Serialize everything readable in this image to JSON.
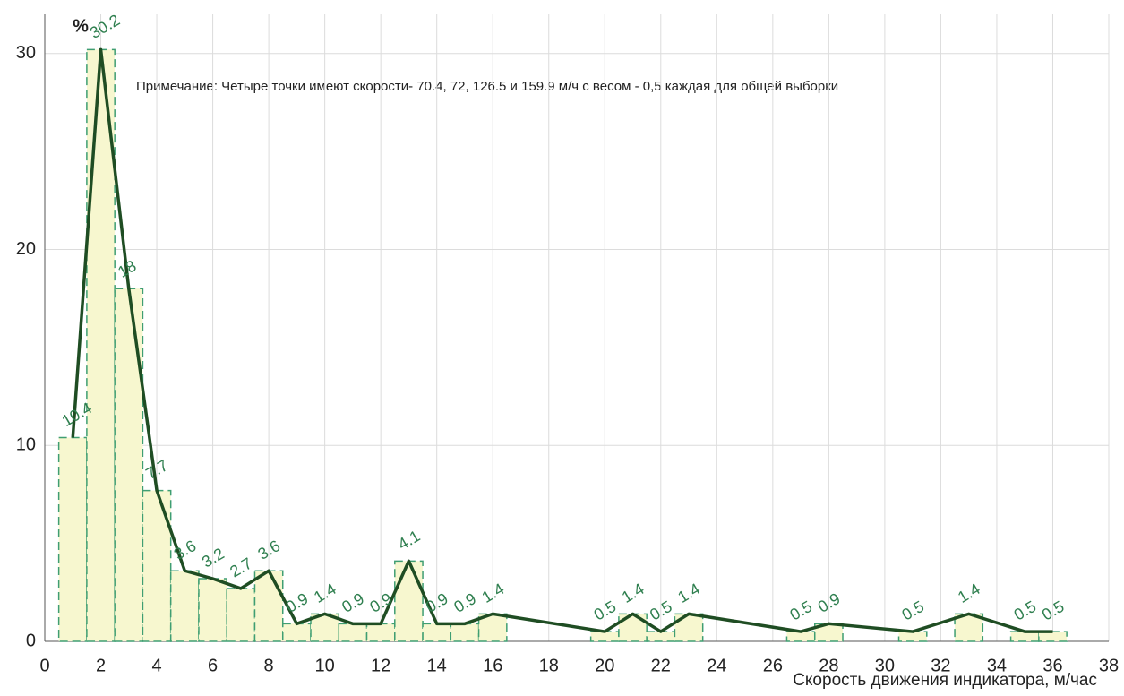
{
  "chart_data": {
    "type": "bar",
    "y_unit_label": "%",
    "note": "Примечание: Четыре точки  имеют скорости- 70.4, 72, 126.5 и 159.9 м/ч с весом - 0,5 каждая для общей выборки",
    "x_label": "Скорость движения индикатора, м/час",
    "x": [
      1,
      2,
      3,
      4,
      5,
      6,
      7,
      8,
      9,
      10,
      11,
      12,
      13,
      14,
      15,
      16,
      20,
      21,
      22,
      23,
      27,
      28,
      31,
      33,
      35,
      36
    ],
    "values": [
      10.4,
      30.2,
      18,
      7.7,
      3.6,
      3.2,
      2.7,
      3.6,
      0.9,
      1.4,
      0.9,
      0.9,
      4.1,
      0.9,
      0.9,
      1.4,
      0.5,
      1.4,
      0.5,
      1.4,
      0.5,
      0.9,
      0.5,
      1.4,
      0.5,
      0.5
    ],
    "color": "#f7f7cf",
    "bar_edge_color": "#3f9e72",
    "line_color": "#1f4d23",
    "label_color": "#2f7f4f",
    "xlim": [
      0,
      38
    ],
    "xticks": [
      0,
      2,
      4,
      6,
      8,
      10,
      12,
      14,
      16,
      18,
      20,
      22,
      24,
      26,
      28,
      30,
      32,
      34,
      36,
      38
    ],
    "ylim": [
      0,
      32
    ],
    "yticks": [
      0,
      10,
      20,
      30
    ],
    "grid": true
  }
}
